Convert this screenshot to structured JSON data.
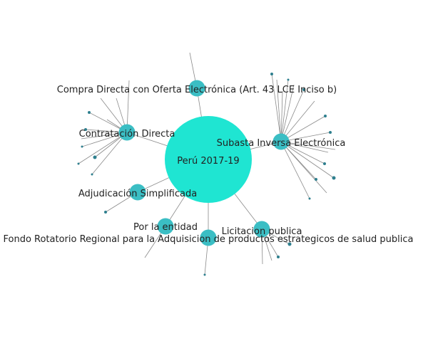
{
  "colors": {
    "root": "#1fe5d2",
    "category": "#3bbec4",
    "leaf": "#2e7f8e",
    "link": "#8a8a8a",
    "text": "#222222"
  },
  "root": {
    "label": "Perú 2017-19"
  },
  "categories": [
    {
      "id": "compra-directa-oferta",
      "label": "Compra Directa con Oferta Electrónica (Art. 43 LCE Inciso b)"
    },
    {
      "id": "contratacion-directa",
      "label": "Contratación Directa"
    },
    {
      "id": "subasta-inversa",
      "label": "Subasta Inversa Electrónica"
    },
    {
      "id": "adjudicacion-simplificada",
      "label": "Adjudicación Simplificada"
    },
    {
      "id": "por-la-entidad",
      "label": "Por la entidad"
    },
    {
      "id": "fondo-rotatorio",
      "label": "Fondo Rotatorio Regional para la Adquisicion de productos estrategicos de salud publica"
    },
    {
      "id": "licitacion-publica",
      "label": "Licitacion publica"
    }
  ]
}
